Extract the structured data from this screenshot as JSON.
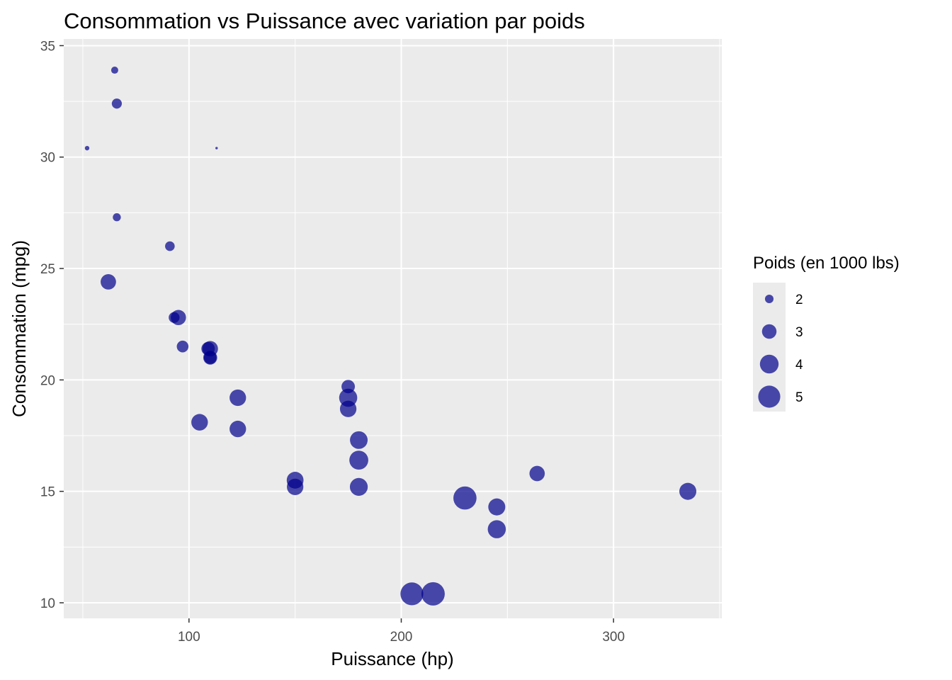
{
  "chart_data": {
    "type": "scatter",
    "title": "Consommation vs Puissance avec variation par poids",
    "xlabel": "Puissance (hp)",
    "ylabel": "Consommation (mpg)",
    "xlim": [
      41,
      351
    ],
    "ylim": [
      9.3,
      35.3
    ],
    "x_ticks": [
      100,
      200,
      300
    ],
    "y_ticks": [
      10,
      15,
      20,
      25,
      30,
      35
    ],
    "grid": true,
    "point_color": "#00008B",
    "point_opacity": 0.7,
    "panel_background": "#EBEBEB",
    "legend": {
      "title": "Poids (en 1000 lbs)",
      "position": "right",
      "entries": [
        {
          "label": "2",
          "value": 2
        },
        {
          "label": "3",
          "value": 3
        },
        {
          "label": "4",
          "value": 4
        },
        {
          "label": "5",
          "value": 5
        }
      ]
    },
    "size_range": [
      1.513,
      5.424
    ],
    "points": [
      {
        "x": 110,
        "y": 21.0,
        "wt": 2.62
      },
      {
        "x": 110,
        "y": 21.0,
        "wt": 2.875
      },
      {
        "x": 93,
        "y": 22.8,
        "wt": 2.32
      },
      {
        "x": 110,
        "y": 21.4,
        "wt": 3.215
      },
      {
        "x": 175,
        "y": 18.7,
        "wt": 3.44
      },
      {
        "x": 105,
        "y": 18.1,
        "wt": 3.46
      },
      {
        "x": 245,
        "y": 14.3,
        "wt": 3.57
      },
      {
        "x": 62,
        "y": 24.4,
        "wt": 3.19
      },
      {
        "x": 95,
        "y": 22.8,
        "wt": 3.15
      },
      {
        "x": 123,
        "y": 19.2,
        "wt": 3.44
      },
      {
        "x": 123,
        "y": 17.8,
        "wt": 3.44
      },
      {
        "x": 180,
        "y": 16.4,
        "wt": 4.07
      },
      {
        "x": 180,
        "y": 17.3,
        "wt": 3.73
      },
      {
        "x": 180,
        "y": 15.2,
        "wt": 3.78
      },
      {
        "x": 205,
        "y": 10.4,
        "wt": 5.25
      },
      {
        "x": 215,
        "y": 10.4,
        "wt": 5.424
      },
      {
        "x": 230,
        "y": 14.7,
        "wt": 5.345
      },
      {
        "x": 66,
        "y": 32.4,
        "wt": 2.2
      },
      {
        "x": 52,
        "y": 30.4,
        "wt": 1.615
      },
      {
        "x": 65,
        "y": 33.9,
        "wt": 1.835
      },
      {
        "x": 97,
        "y": 21.5,
        "wt": 2.465
      },
      {
        "x": 150,
        "y": 15.5,
        "wt": 3.52
      },
      {
        "x": 150,
        "y": 15.2,
        "wt": 3.435
      },
      {
        "x": 245,
        "y": 13.3,
        "wt": 3.84
      },
      {
        "x": 175,
        "y": 19.2,
        "wt": 3.845
      },
      {
        "x": 66,
        "y": 27.3,
        "wt": 1.935
      },
      {
        "x": 91,
        "y": 26.0,
        "wt": 2.14
      },
      {
        "x": 113,
        "y": 30.4,
        "wt": 1.513
      },
      {
        "x": 264,
        "y": 15.8,
        "wt": 3.17
      },
      {
        "x": 175,
        "y": 19.7,
        "wt": 2.77
      },
      {
        "x": 335,
        "y": 15.0,
        "wt": 3.57
      },
      {
        "x": 109,
        "y": 21.4,
        "wt": 2.78
      }
    ]
  }
}
